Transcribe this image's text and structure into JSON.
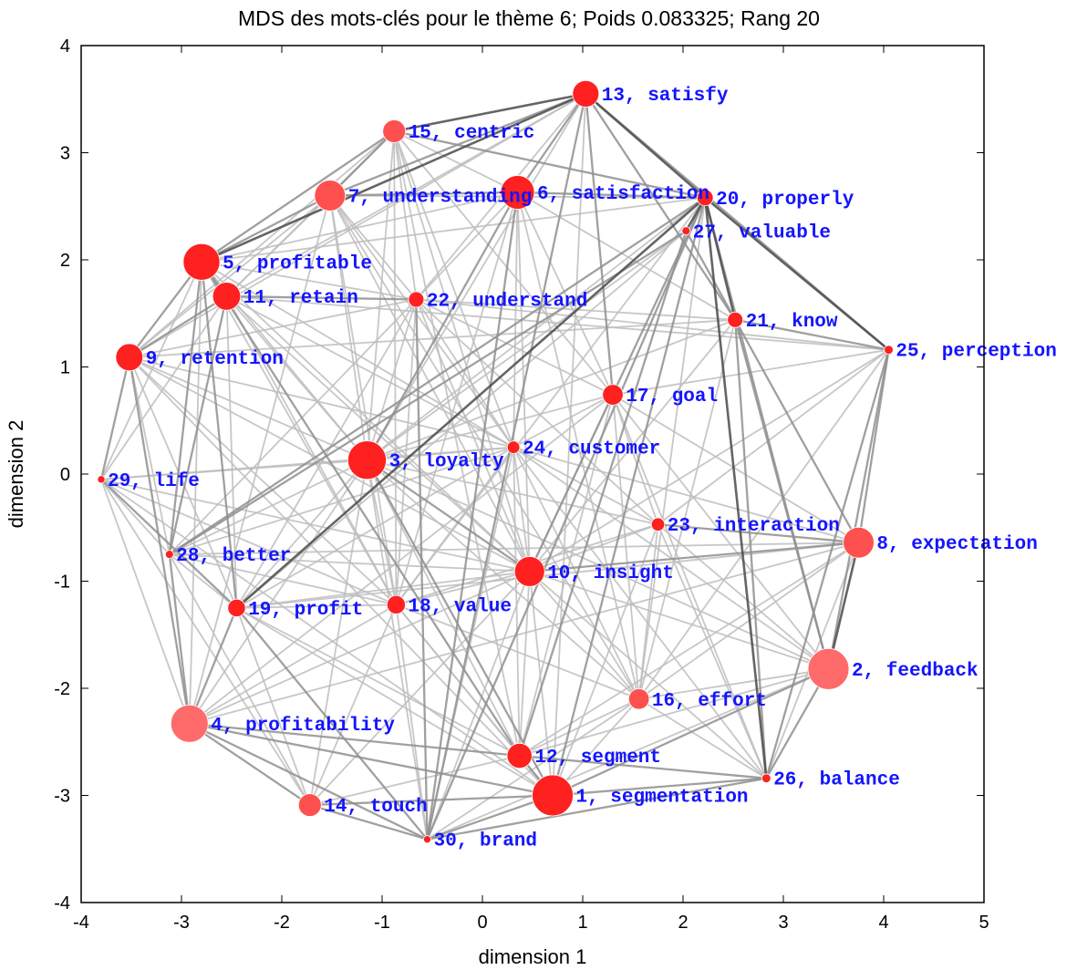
{
  "chart_data": {
    "type": "scatter",
    "title": "MDS des mots-clés pour le thème 6; Poids 0.083325; Rang 20",
    "xlabel": "dimension 1",
    "ylabel": "dimension 2",
    "xlim": [
      -4,
      5
    ],
    "ylim": [
      -4,
      4
    ],
    "xticks": [
      "-4",
      "-3",
      "-2",
      "-1",
      "0",
      "1",
      "2",
      "3",
      "4",
      "5"
    ],
    "yticks": [
      "-4",
      "-3",
      "-2",
      "-1",
      "0",
      "1",
      "2",
      "3",
      "4"
    ],
    "point_color": "#ff2020",
    "label_color": "#1414ff",
    "edge_color": "#8c8c8c",
    "points": [
      {
        "id": 1,
        "label": "1, segmentation",
        "x": 0.7,
        "y": -3.0,
        "size": 1.0
      },
      {
        "id": 2,
        "label": "2, feedback",
        "x": 3.45,
        "y": -1.82,
        "size": 1.0
      },
      {
        "id": 3,
        "label": "3, loyalty",
        "x": -1.15,
        "y": 0.13,
        "size": 0.93
      },
      {
        "id": 4,
        "label": "4, profitability",
        "x": -2.92,
        "y": -2.33,
        "size": 0.9
      },
      {
        "id": 5,
        "label": "5, profitable",
        "x": -2.8,
        "y": 1.98,
        "size": 0.88
      },
      {
        "id": 6,
        "label": "6, satisfaction",
        "x": 0.35,
        "y": 2.63,
        "size": 0.8
      },
      {
        "id": 7,
        "label": "7, understanding",
        "x": -1.52,
        "y": 2.6,
        "size": 0.72
      },
      {
        "id": 8,
        "label": "8, expectation",
        "x": 3.75,
        "y": -0.64,
        "size": 0.72
      },
      {
        "id": 9,
        "label": "9, retention",
        "x": -3.52,
        "y": 1.09,
        "size": 0.62
      },
      {
        "id": 10,
        "label": "10, insight",
        "x": 0.47,
        "y": -0.91,
        "size": 0.7
      },
      {
        "id": 11,
        "label": "11, retain",
        "x": -2.55,
        "y": 1.66,
        "size": 0.64
      },
      {
        "id": 12,
        "label": "12, segment",
        "x": 0.37,
        "y": -2.63,
        "size": 0.56
      },
      {
        "id": 13,
        "label": "13, satisfy",
        "x": 1.03,
        "y": 3.55,
        "size": 0.6
      },
      {
        "id": 14,
        "label": "14, touch",
        "x": -1.72,
        "y": -3.09,
        "size": 0.5
      },
      {
        "id": 15,
        "label": "15, centric",
        "x": -0.88,
        "y": 3.2,
        "size": 0.5
      },
      {
        "id": 16,
        "label": "16, effort",
        "x": 1.56,
        "y": -2.1,
        "size": 0.44
      },
      {
        "id": 17,
        "label": "17, goal",
        "x": 1.3,
        "y": 0.74,
        "size": 0.44
      },
      {
        "id": 18,
        "label": "18, value",
        "x": -0.86,
        "y": -1.22,
        "size": 0.38
      },
      {
        "id": 19,
        "label": "19, profit",
        "x": -2.45,
        "y": -1.25,
        "size": 0.36
      },
      {
        "id": 20,
        "label": "20, properly",
        "x": 2.22,
        "y": 2.58,
        "size": 0.32
      },
      {
        "id": 21,
        "label": "21, know",
        "x": 2.52,
        "y": 1.44,
        "size": 0.3
      },
      {
        "id": 22,
        "label": "22, understand",
        "x": -0.66,
        "y": 1.63,
        "size": 0.3
      },
      {
        "id": 23,
        "label": "23, interaction",
        "x": 1.75,
        "y": -0.47,
        "size": 0.24
      },
      {
        "id": 24,
        "label": "24, customer",
        "x": 0.31,
        "y": 0.25,
        "size": 0.22
      },
      {
        "id": 25,
        "label": "25, perception",
        "x": 4.05,
        "y": 1.16,
        "size": 0.12
      },
      {
        "id": 26,
        "label": "26, balance",
        "x": 2.83,
        "y": -2.84,
        "size": 0.12
      },
      {
        "id": 27,
        "label": "27, valuable",
        "x": 2.03,
        "y": 2.27,
        "size": 0.1
      },
      {
        "id": 28,
        "label": "28, better",
        "x": -3.12,
        "y": -0.75,
        "size": 0.1
      },
      {
        "id": 29,
        "label": "29, life",
        "x": -3.8,
        "y": -0.05,
        "size": 0.08
      },
      {
        "id": 30,
        "label": "30, brand",
        "x": -0.55,
        "y": -3.41,
        "size": 0.08
      }
    ],
    "edges": [
      [
        13,
        20,
        3
      ],
      [
        13,
        5,
        3
      ],
      [
        13,
        15,
        3
      ],
      [
        13,
        7,
        2
      ],
      [
        13,
        6,
        2
      ],
      [
        13,
        25,
        2
      ],
      [
        13,
        30,
        2
      ],
      [
        13,
        17,
        2
      ],
      [
        13,
        11,
        1
      ],
      [
        13,
        22,
        1
      ],
      [
        13,
        9,
        1
      ],
      [
        13,
        1,
        1
      ],
      [
        13,
        21,
        2
      ],
      [
        13,
        3,
        1
      ],
      [
        20,
        21,
        3
      ],
      [
        20,
        27,
        3
      ],
      [
        20,
        6,
        2
      ],
      [
        20,
        25,
        3
      ],
      [
        20,
        26,
        3
      ],
      [
        20,
        19,
        3
      ],
      [
        20,
        28,
        2
      ],
      [
        20,
        30,
        2
      ],
      [
        20,
        1,
        2
      ],
      [
        20,
        7,
        1
      ],
      [
        20,
        15,
        2
      ],
      [
        20,
        5,
        1
      ],
      [
        20,
        10,
        2
      ],
      [
        20,
        16,
        1
      ],
      [
        20,
        2,
        2
      ],
      [
        20,
        3,
        1
      ],
      [
        20,
        18,
        1
      ],
      [
        27,
        21,
        2
      ],
      [
        27,
        28,
        2
      ],
      [
        27,
        12,
        2
      ],
      [
        27,
        3,
        1
      ],
      [
        27,
        19,
        1
      ],
      [
        25,
        8,
        2
      ],
      [
        25,
        2,
        2
      ],
      [
        25,
        26,
        2
      ],
      [
        25,
        22,
        1
      ],
      [
        25,
        17,
        1
      ],
      [
        25,
        11,
        1
      ],
      [
        25,
        10,
        1
      ],
      [
        25,
        16,
        1
      ],
      [
        25,
        23,
        1
      ],
      [
        25,
        21,
        2
      ],
      [
        21,
        26,
        2
      ],
      [
        21,
        16,
        1
      ],
      [
        21,
        2,
        2
      ],
      [
        21,
        8,
        2
      ],
      [
        21,
        10,
        1
      ],
      [
        21,
        3,
        1
      ],
      [
        21,
        9,
        1
      ],
      [
        21,
        22,
        1
      ],
      [
        8,
        2,
        3
      ],
      [
        8,
        26,
        1
      ],
      [
        8,
        23,
        2
      ],
      [
        8,
        10,
        2
      ],
      [
        8,
        12,
        1
      ],
      [
        8,
        16,
        1
      ],
      [
        8,
        17,
        1
      ],
      [
        8,
        4,
        1
      ],
      [
        8,
        19,
        1
      ],
      [
        8,
        28,
        1
      ],
      [
        8,
        24,
        1
      ],
      [
        2,
        26,
        2
      ],
      [
        2,
        1,
        2
      ],
      [
        2,
        12,
        1
      ],
      [
        2,
        16,
        1
      ],
      [
        2,
        10,
        1
      ],
      [
        2,
        23,
        1
      ],
      [
        2,
        17,
        1
      ],
      [
        2,
        24,
        1
      ],
      [
        2,
        3,
        1
      ],
      [
        2,
        30,
        1
      ],
      [
        26,
        1,
        2
      ],
      [
        26,
        12,
        2
      ],
      [
        26,
        30,
        2
      ],
      [
        26,
        16,
        1
      ],
      [
        26,
        23,
        1
      ],
      [
        26,
        10,
        1
      ],
      [
        26,
        17,
        1
      ],
      [
        26,
        24,
        1
      ],
      [
        1,
        12,
        2
      ],
      [
        1,
        30,
        2
      ],
      [
        1,
        14,
        2
      ],
      [
        1,
        4,
        2
      ],
      [
        1,
        19,
        1
      ],
      [
        1,
        18,
        1
      ],
      [
        1,
        3,
        2
      ],
      [
        1,
        10,
        1
      ],
      [
        1,
        16,
        1
      ],
      [
        1,
        23,
        1
      ],
      [
        1,
        9,
        1
      ],
      [
        1,
        29,
        1
      ],
      [
        12,
        4,
        2
      ],
      [
        12,
        14,
        1
      ],
      [
        12,
        18,
        1
      ],
      [
        12,
        3,
        1
      ],
      [
        12,
        10,
        1
      ],
      [
        12,
        5,
        2
      ],
      [
        12,
        19,
        1
      ],
      [
        12,
        16,
        1
      ],
      [
        12,
        24,
        1
      ],
      [
        30,
        14,
        2
      ],
      [
        30,
        4,
        2
      ],
      [
        30,
        19,
        2
      ],
      [
        30,
        6,
        2
      ],
      [
        30,
        22,
        2
      ],
      [
        30,
        24,
        1
      ],
      [
        30,
        10,
        1
      ],
      [
        30,
        3,
        1
      ],
      [
        30,
        16,
        1
      ],
      [
        30,
        18,
        1
      ],
      [
        14,
        4,
        2
      ],
      [
        14,
        19,
        1
      ],
      [
        14,
        28,
        1
      ],
      [
        14,
        18,
        1
      ],
      [
        14,
        10,
        1
      ],
      [
        14,
        3,
        1
      ],
      [
        14,
        29,
        1
      ],
      [
        4,
        28,
        2
      ],
      [
        4,
        19,
        2
      ],
      [
        4,
        29,
        1
      ],
      [
        4,
        9,
        2
      ],
      [
        4,
        18,
        1
      ],
      [
        4,
        3,
        1
      ],
      [
        4,
        10,
        1
      ],
      [
        4,
        7,
        1
      ],
      [
        4,
        17,
        1
      ],
      [
        4,
        5,
        1
      ],
      [
        19,
        28,
        1
      ],
      [
        19,
        18,
        1
      ],
      [
        19,
        10,
        1
      ],
      [
        19,
        5,
        2
      ],
      [
        19,
        11,
        1
      ],
      [
        19,
        24,
        1
      ],
      [
        19,
        3,
        1
      ],
      [
        19,
        9,
        1
      ],
      [
        19,
        22,
        1
      ],
      [
        28,
        29,
        1
      ],
      [
        28,
        9,
        1
      ],
      [
        28,
        5,
        2
      ],
      [
        28,
        11,
        2
      ],
      [
        28,
        3,
        1
      ],
      [
        28,
        18,
        1
      ],
      [
        28,
        10,
        1
      ],
      [
        28,
        24,
        1
      ],
      [
        28,
        22,
        1
      ],
      [
        29,
        9,
        2
      ],
      [
        29,
        5,
        1
      ],
      [
        29,
        11,
        1
      ],
      [
        29,
        3,
        1
      ],
      [
        29,
        18,
        1
      ],
      [
        29,
        10,
        1
      ],
      [
        29,
        24,
        1
      ],
      [
        29,
        19,
        2
      ],
      [
        9,
        5,
        2
      ],
      [
        9,
        11,
        2
      ],
      [
        9,
        7,
        1
      ],
      [
        9,
        15,
        1
      ],
      [
        9,
        22,
        1
      ],
      [
        9,
        3,
        1
      ],
      [
        9,
        10,
        1
      ],
      [
        9,
        18,
        1
      ],
      [
        9,
        24,
        1
      ],
      [
        5,
        11,
        2
      ],
      [
        5,
        7,
        2
      ],
      [
        5,
        15,
        2
      ],
      [
        5,
        6,
        1
      ],
      [
        5,
        22,
        1
      ],
      [
        5,
        3,
        1
      ],
      [
        5,
        18,
        1
      ],
      [
        5,
        10,
        1
      ],
      [
        5,
        24,
        1
      ],
      [
        11,
        7,
        1
      ],
      [
        11,
        15,
        1
      ],
      [
        11,
        22,
        2
      ],
      [
        11,
        3,
        1
      ],
      [
        11,
        18,
        1
      ],
      [
        11,
        10,
        1
      ],
      [
        11,
        24,
        1
      ],
      [
        7,
        15,
        2
      ],
      [
        7,
        6,
        2
      ],
      [
        7,
        22,
        1
      ],
      [
        7,
        3,
        1
      ],
      [
        7,
        18,
        1
      ],
      [
        7,
        10,
        1
      ],
      [
        7,
        24,
        1
      ],
      [
        7,
        16,
        1
      ],
      [
        15,
        6,
        1
      ],
      [
        15,
        22,
        1
      ],
      [
        15,
        3,
        1
      ],
      [
        15,
        18,
        1
      ],
      [
        15,
        10,
        1
      ],
      [
        15,
        24,
        1
      ],
      [
        15,
        12,
        1
      ],
      [
        15,
        17,
        1
      ],
      [
        6,
        22,
        1
      ],
      [
        6,
        3,
        2
      ],
      [
        6,
        17,
        1
      ],
      [
        6,
        24,
        1
      ],
      [
        6,
        10,
        1
      ],
      [
        6,
        18,
        1
      ],
      [
        6,
        21,
        1
      ],
      [
        6,
        16,
        1
      ],
      [
        22,
        3,
        1
      ],
      [
        22,
        17,
        1
      ],
      [
        22,
        24,
        1
      ],
      [
        22,
        10,
        1
      ],
      [
        22,
        18,
        1
      ],
      [
        22,
        23,
        1
      ],
      [
        3,
        17,
        1
      ],
      [
        3,
        24,
        1
      ],
      [
        3,
        10,
        2
      ],
      [
        3,
        18,
        1
      ],
      [
        3,
        23,
        1
      ],
      [
        3,
        16,
        1
      ],
      [
        17,
        24,
        1
      ],
      [
        17,
        10,
        1
      ],
      [
        17,
        23,
        1
      ],
      [
        17,
        16,
        1
      ],
      [
        17,
        12,
        1
      ],
      [
        24,
        10,
        1
      ],
      [
        24,
        18,
        1
      ],
      [
        24,
        23,
        1
      ],
      [
        24,
        16,
        1
      ],
      [
        10,
        18,
        1
      ],
      [
        10,
        23,
        1
      ],
      [
        10,
        16,
        1
      ],
      [
        18,
        23,
        1
      ],
      [
        18,
        16,
        1
      ],
      [
        23,
        16,
        1
      ]
    ]
  }
}
